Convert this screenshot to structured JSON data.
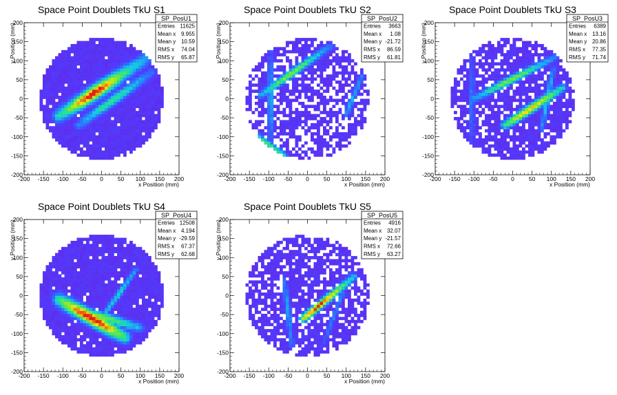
{
  "chart_data": [
    {
      "type": "heatmap",
      "title": "Space Point Doublets TkU S1",
      "xlabel": "x Position (mm)",
      "ylabel": "y Position (mm)",
      "xlim": [
        -200,
        200
      ],
      "ylim": [
        -200,
        200
      ],
      "xticks": [
        -200,
        -150,
        -100,
        -50,
        0,
        50,
        100,
        150,
        200
      ],
      "yticks": [
        -200,
        -150,
        -100,
        -50,
        0,
        50,
        100,
        150,
        200
      ],
      "stats": {
        "name": "SP_PosU1",
        "rows": [
          [
            "Entries",
            "11625"
          ],
          [
            "Mean x",
            "9.955"
          ],
          [
            "Mean y",
            "10.59"
          ],
          [
            "RMS x",
            "74.04"
          ],
          [
            "RMS y",
            "65.87"
          ]
        ]
      },
      "radius": 160,
      "fill": 0.97,
      "bands": [
        {
          "from": [
            -110,
            -45
          ],
          "to": [
            120,
            110
          ],
          "width": 14,
          "peak": 1.0,
          "hot_center": [
            -10,
            5
          ]
        },
        {
          "from": [
            -60,
            -70
          ],
          "to": [
            130,
            70
          ],
          "width": 10,
          "peak": 0.6,
          "hot_center": [
            20,
            10
          ]
        }
      ]
    },
    {
      "type": "heatmap",
      "title": "Space Point Doublets TkU S2",
      "xlabel": "x Position (mm)",
      "ylabel": "y Position (mm)",
      "xlim": [
        -200,
        200
      ],
      "ylim": [
        -200,
        200
      ],
      "xticks": [
        -200,
        -150,
        -100,
        -50,
        0,
        50,
        100,
        150,
        200
      ],
      "yticks": [
        -200,
        -150,
        -100,
        -50,
        0,
        50,
        100,
        150,
        200
      ],
      "stats": {
        "name": "SP_PosU2",
        "rows": [
          [
            "Entries",
            "3663"
          ],
          [
            "Mean x",
            "1.08"
          ],
          [
            "Mean y",
            "-21.72"
          ],
          [
            "RMS x",
            "86.59"
          ],
          [
            "RMS y",
            "61.81"
          ]
        ]
      },
      "radius": 160,
      "fill": 0.62,
      "bands": [
        {
          "from": [
            -120,
            10
          ],
          "to": [
            60,
            140
          ],
          "width": 8,
          "peak": 0.7,
          "hot_center": [
            -40,
            60
          ]
        },
        {
          "from": [
            -130,
            -100
          ],
          "to": [
            -60,
            -150
          ],
          "width": 8,
          "peak": 0.6,
          "hot_center": [
            -100,
            -120
          ]
        },
        {
          "from": [
            -95,
            -140
          ],
          "to": [
            -95,
            140
          ],
          "width": 6,
          "peak": 0.45,
          "hot_center": [
            -95,
            0
          ]
        },
        {
          "from": [
            100,
            -40
          ],
          "to": [
            140,
            60
          ],
          "width": 6,
          "peak": 0.4,
          "hot_center": [
            120,
            0
          ]
        }
      ]
    },
    {
      "type": "heatmap",
      "title": "Space Point Doublets TkU S3",
      "xlabel": "x Position (mm)",
      "ylabel": "y Position (mm)",
      "xlim": [
        -200,
        200
      ],
      "ylim": [
        -200,
        200
      ],
      "xticks": [
        -200,
        -150,
        -100,
        -50,
        0,
        50,
        100,
        150,
        200
      ],
      "yticks": [
        -200,
        -150,
        -100,
        -50,
        0,
        50,
        100,
        150,
        200
      ],
      "stats": {
        "name": "SP_PosU3",
        "rows": [
          [
            "Entries",
            "6389"
          ],
          [
            "Mean x",
            "13.16"
          ],
          [
            "Mean y",
            "20.86"
          ],
          [
            "RMS x",
            "77.35"
          ],
          [
            "RMS y",
            "71.74"
          ]
        ]
      },
      "radius": 160,
      "fill": 0.8,
      "bands": [
        {
          "from": [
            -100,
            0
          ],
          "to": [
            110,
            110
          ],
          "width": 8,
          "peak": 0.7,
          "hot_center": [
            0,
            45
          ]
        },
        {
          "from": [
            -20,
            -70
          ],
          "to": [
            130,
            30
          ],
          "width": 9,
          "peak": 0.85,
          "hot_center": [
            50,
            -40
          ]
        },
        {
          "from": [
            -105,
            -120
          ],
          "to": [
            -105,
            110
          ],
          "width": 5,
          "peak": 0.35,
          "hot_center": [
            -105,
            0
          ]
        },
        {
          "from": [
            75,
            -80
          ],
          "to": [
            105,
            80
          ],
          "width": 6,
          "peak": 0.45,
          "hot_center": [
            95,
            0
          ]
        }
      ]
    },
    {
      "type": "heatmap",
      "title": "Space Point Doublets TkU S4",
      "xlabel": "x Position (mm)",
      "ylabel": "y Position (mm)",
      "xlim": [
        -200,
        200
      ],
      "ylim": [
        -200,
        200
      ],
      "xticks": [
        -200,
        -150,
        -100,
        -50,
        0,
        50,
        100,
        150,
        200
      ],
      "yticks": [
        -200,
        -150,
        -100,
        -50,
        0,
        50,
        100,
        150,
        200
      ],
      "stats": {
        "name": "SP_PosU4",
        "rows": [
          [
            "Entries",
            "12508"
          ],
          [
            "Mean x",
            "4.194"
          ],
          [
            "Mean y",
            "-29.59"
          ],
          [
            "RMS x",
            "67.37"
          ],
          [
            "RMS y",
            "62.68"
          ]
        ]
      },
      "radius": 160,
      "fill": 0.95,
      "bands": [
        {
          "from": [
            -110,
            -10
          ],
          "to": [
            60,
            -110
          ],
          "width": 14,
          "peak": 1.0,
          "hot_center": [
            -25,
            -55
          ]
        },
        {
          "from": [
            -100,
            -25
          ],
          "to": [
            100,
            -85
          ],
          "width": 10,
          "peak": 0.7,
          "hot_center": [
            0,
            -55
          ]
        },
        {
          "from": [
            0,
            -60
          ],
          "to": [
            90,
            70
          ],
          "width": 6,
          "peak": 0.5,
          "hot_center": [
            50,
            0
          ]
        }
      ]
    },
    {
      "type": "heatmap",
      "title": "Space Point Doublets TkU S5",
      "xlabel": "x Position (mm)",
      "ylabel": "y Position (mm)",
      "xlim": [
        -200,
        200
      ],
      "ylim": [
        -200,
        200
      ],
      "xticks": [
        -200,
        -150,
        -100,
        -50,
        0,
        50,
        100,
        150,
        200
      ],
      "yticks": [
        -200,
        -150,
        -100,
        -50,
        0,
        50,
        100,
        150,
        200
      ],
      "stats": {
        "name": "SP_PosU5",
        "rows": [
          [
            "Entries",
            "4916"
          ],
          [
            "Mean x",
            "32.07"
          ],
          [
            "Mean y",
            "-21.57"
          ],
          [
            "RMS x",
            "72.66"
          ],
          [
            "RMS y",
            "63.27"
          ]
        ]
      },
      "radius": 160,
      "fill": 0.72,
      "bands": [
        {
          "from": [
            -10,
            -60
          ],
          "to": [
            120,
            50
          ],
          "width": 8,
          "peak": 0.95,
          "hot_center": [
            20,
            -20
          ]
        },
        {
          "from": [
            -60,
            40
          ],
          "to": [
            -40,
            -130
          ],
          "width": 6,
          "peak": 0.4,
          "hot_center": [
            -50,
            -40
          ]
        },
        {
          "from": [
            40,
            -130
          ],
          "to": [
            110,
            60
          ],
          "width": 5,
          "peak": 0.35,
          "hot_center": [
            80,
            -30
          ]
        }
      ]
    }
  ]
}
